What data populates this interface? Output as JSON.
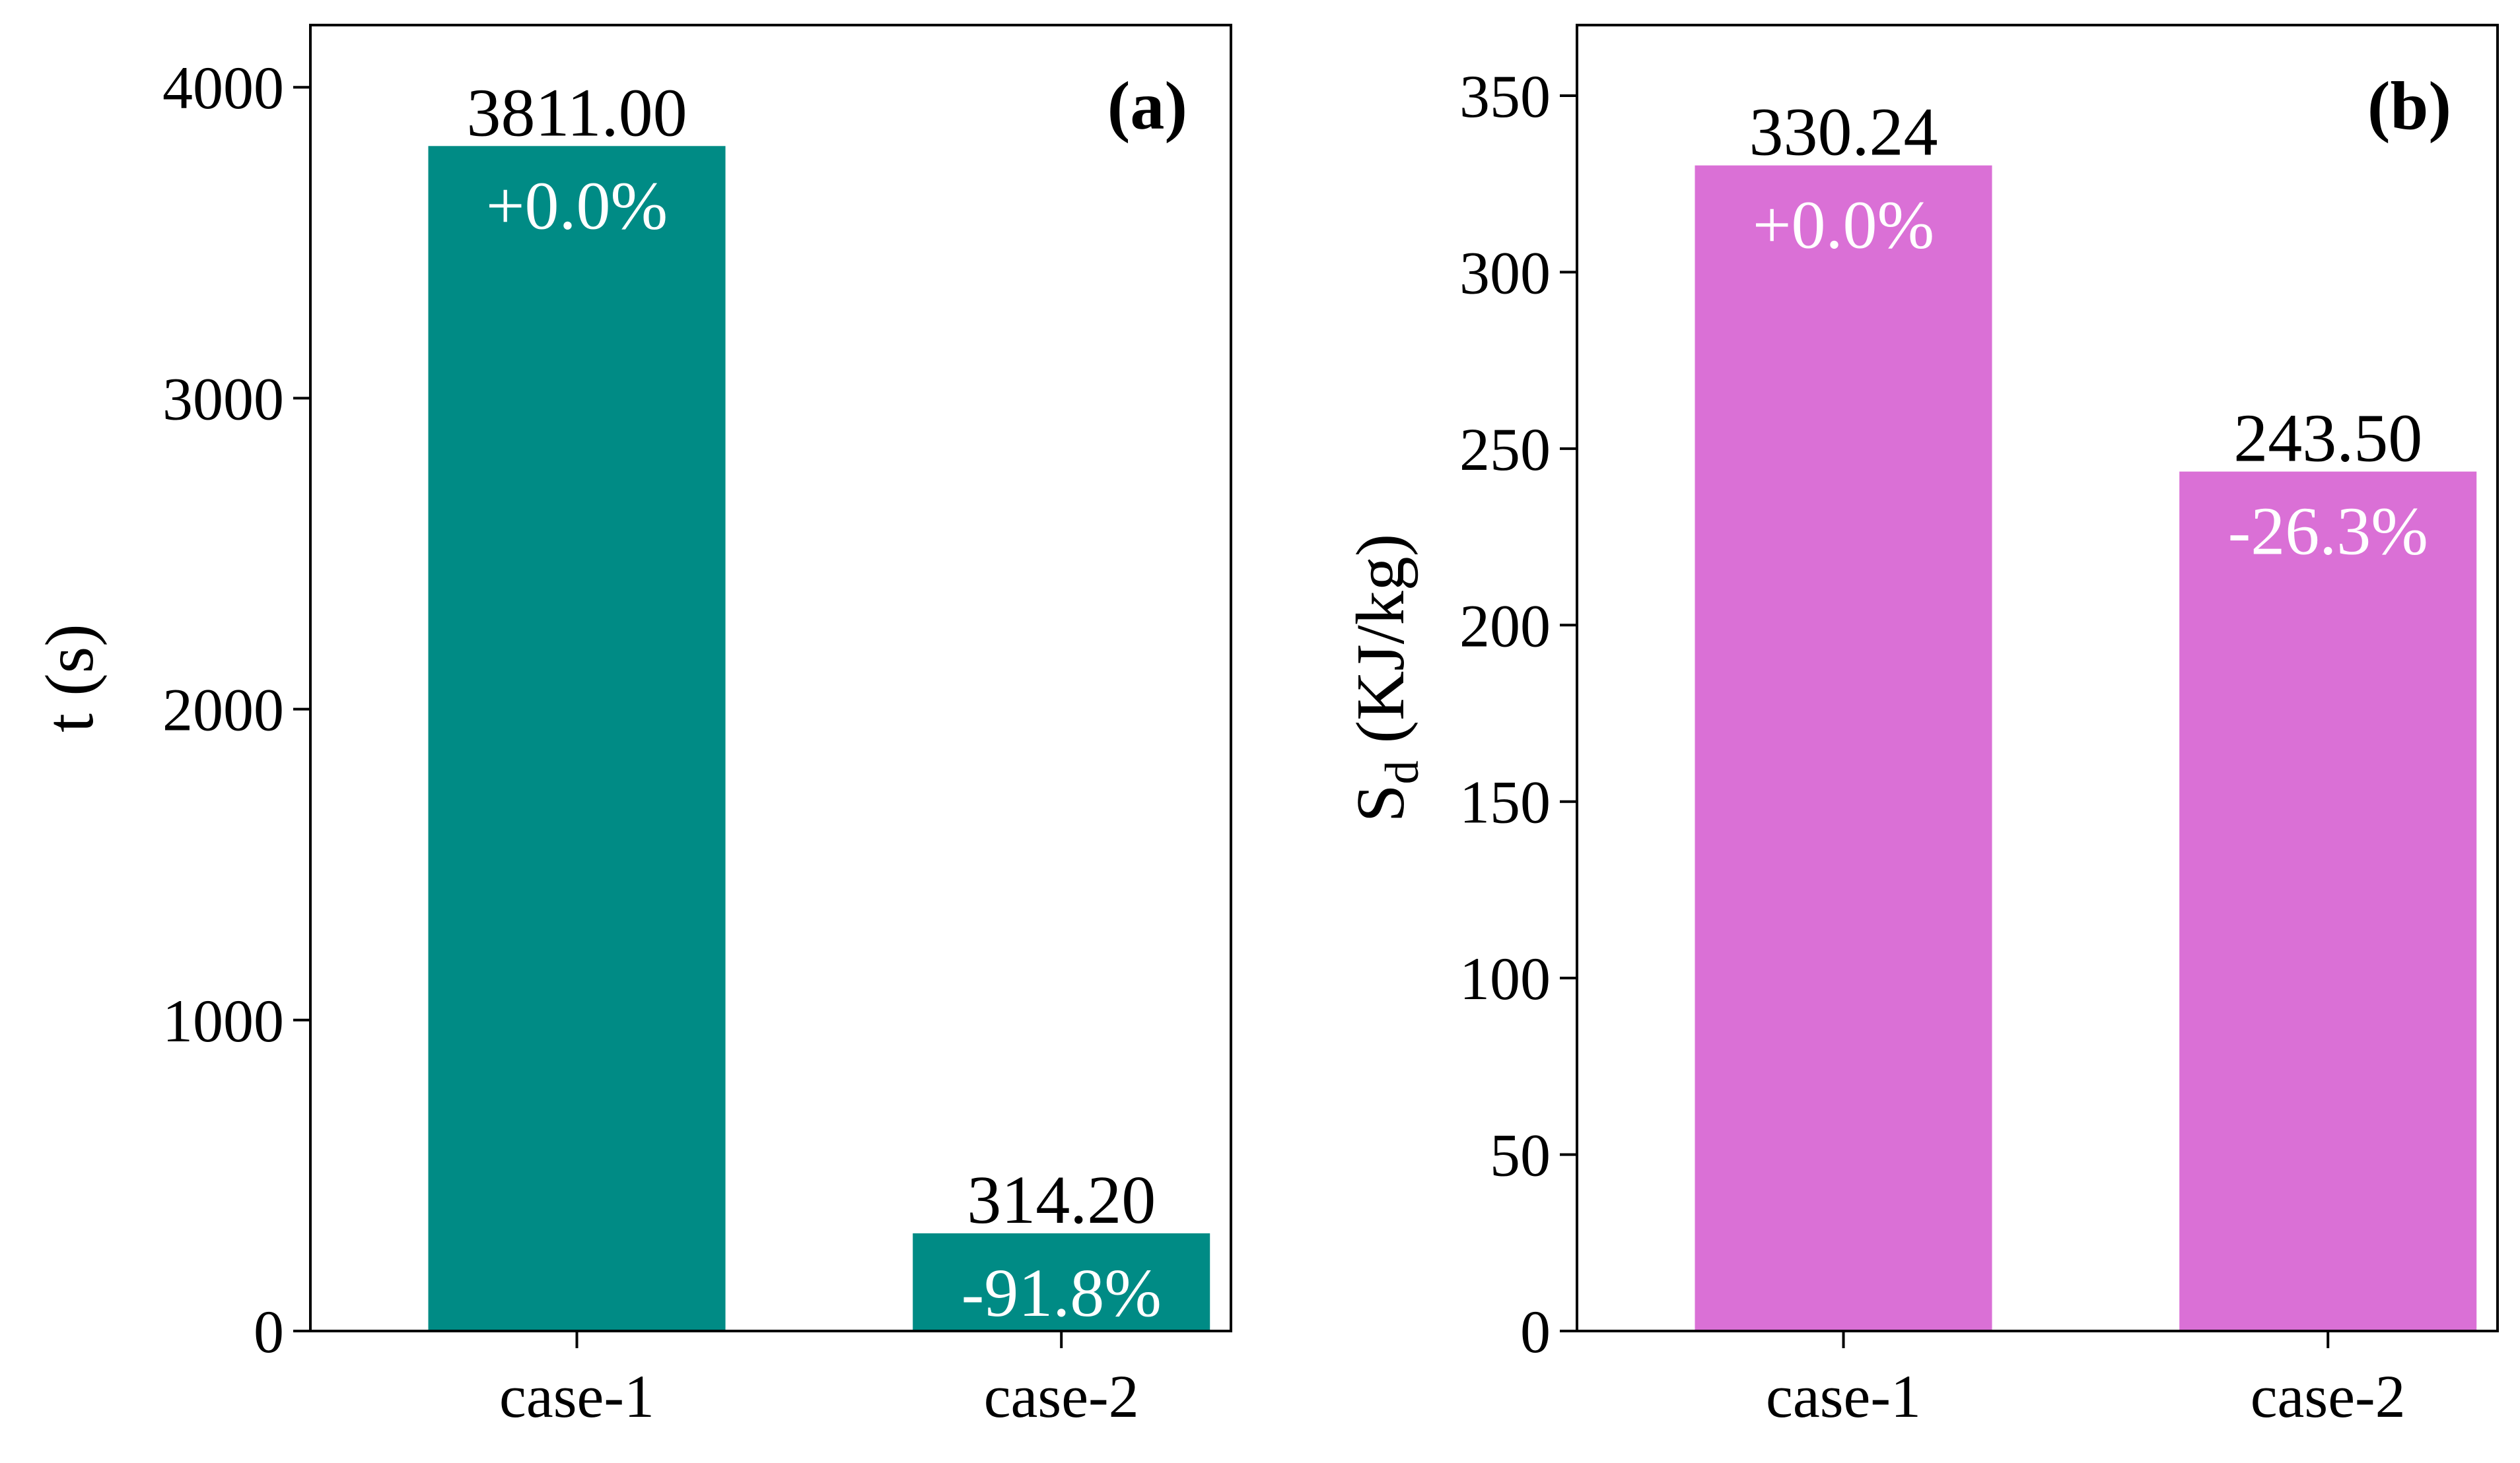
{
  "chart_data": [
    {
      "type": "bar",
      "panel_label": "(a)",
      "categories": [
        "case-1",
        "case-2"
      ],
      "values": [
        3811.0,
        314.2
      ],
      "value_labels": [
        "3811.00",
        "314.20"
      ],
      "change_labels": [
        "+0.0%",
        "-91.8%"
      ],
      "ylabel": "t (s)",
      "ylabel_main": "t (s)",
      "ylabel_sub": "",
      "ylabel_tail": "",
      "ylim": [
        0,
        4200
      ],
      "yticks": [
        0,
        1000,
        2000,
        3000,
        4000
      ],
      "ytick_labels": [
        "0",
        "1000",
        "2000",
        "3000",
        "4000"
      ],
      "color": "#008B85",
      "grid": false,
      "legend": "none"
    },
    {
      "type": "bar",
      "panel_label": "(b)",
      "categories": [
        "case-1",
        "case-2"
      ],
      "values": [
        330.24,
        243.5
      ],
      "value_labels": [
        "330.24",
        "243.50"
      ],
      "change_labels": [
        "+0.0%",
        "-26.3%"
      ],
      "ylabel": "Sd (KJ/kg)",
      "ylabel_main": "S",
      "ylabel_sub": "d",
      "ylabel_tail": " (KJ/kg)",
      "ylim": [
        0,
        370
      ],
      "yticks": [
        0,
        50,
        100,
        150,
        200,
        250,
        300,
        350
      ],
      "ytick_labels": [
        "0",
        "50",
        "100",
        "150",
        "200",
        "250",
        "300",
        "350"
      ],
      "color": "#DA70D6",
      "grid": false,
      "legend": "none"
    }
  ]
}
